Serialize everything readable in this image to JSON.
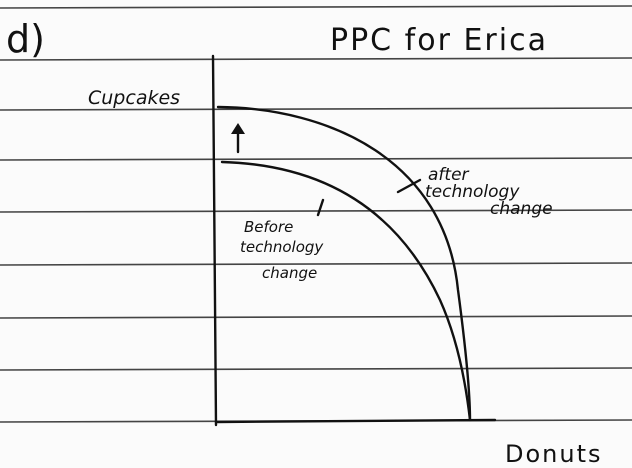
{
  "header": {
    "part": "d)",
    "title": "PPC for Erica"
  },
  "axes": {
    "y_label": "Cupcakes",
    "x_label": "Donuts"
  },
  "curves": {
    "after": [
      "after",
      "technology",
      "change"
    ],
    "before": [
      "Before",
      "technology",
      "change"
    ]
  }
}
